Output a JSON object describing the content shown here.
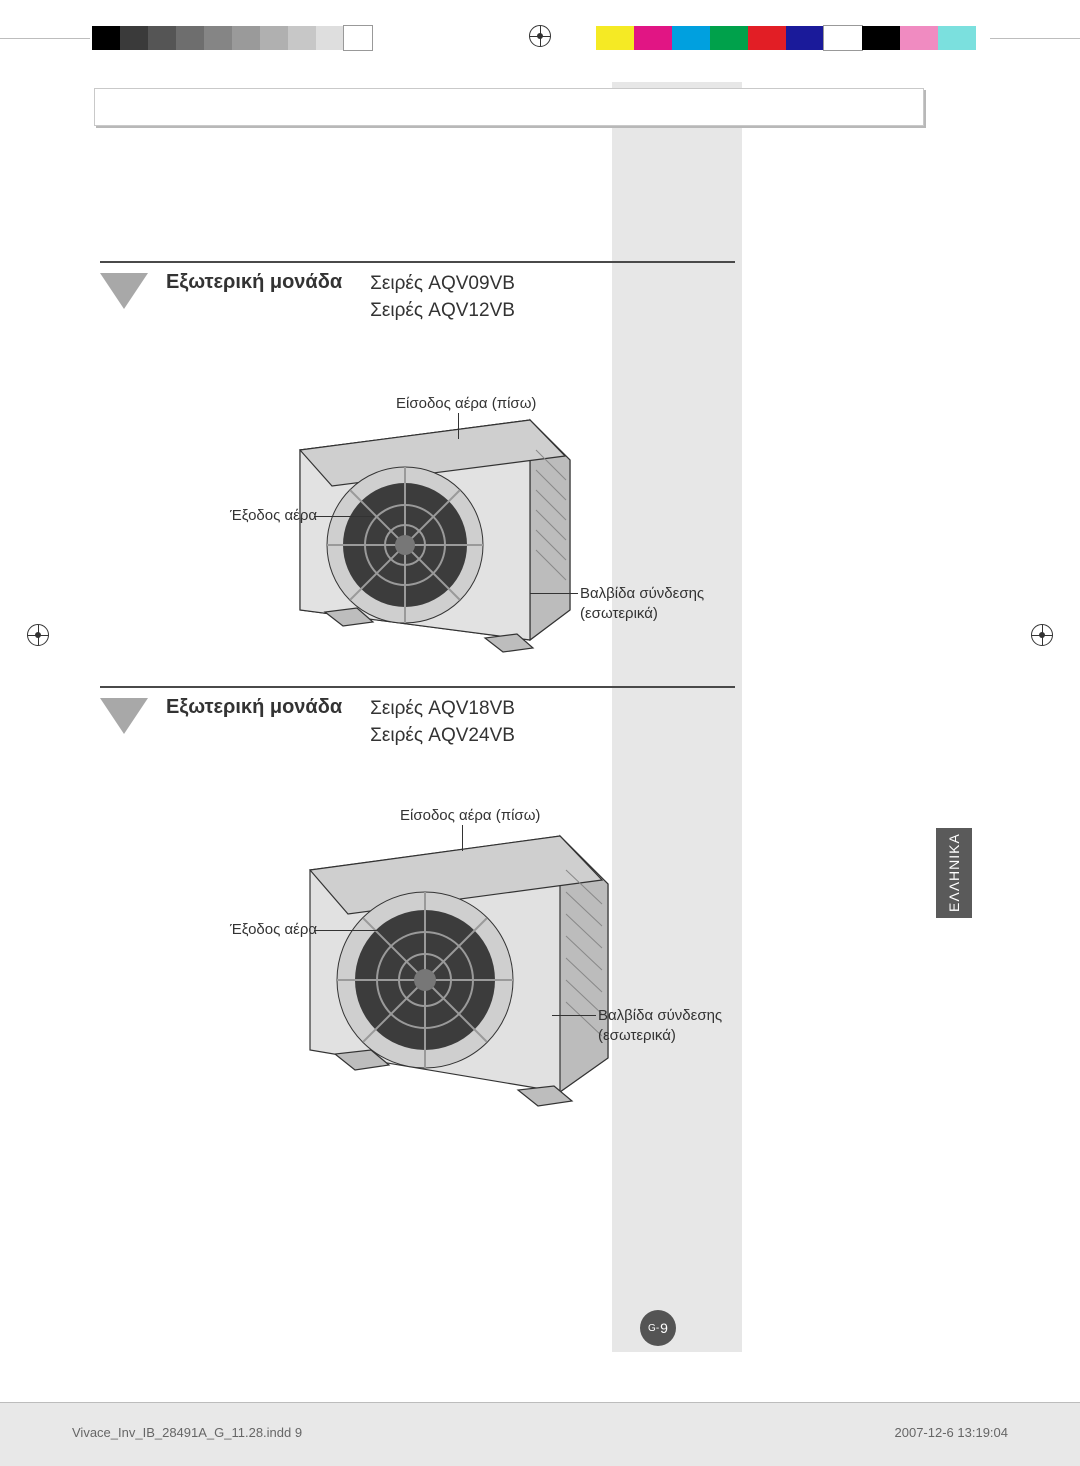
{
  "colorbar_left": [
    "#000000",
    "#3a3a3a",
    "#555555",
    "#6e6e6e",
    "#858585",
    "#9a9a9a",
    "#b0b0b0",
    "#c7c7c7",
    "#dedede",
    "#ffffff"
  ],
  "colorbar_right": [
    "#f5ea24",
    "#e11584",
    "#00a0df",
    "#00a14b",
    "#e21e25",
    "#1a1a9a",
    "#ffffff",
    "#000000",
    "#f08bc1",
    "#7be0de"
  ],
  "section1": {
    "title": "Εξωτερική μονάδα",
    "series1": "Σειρές AQV09VB",
    "series2": "Σειρές AQV12VB",
    "callouts": {
      "air_in": "Είσοδος αέρα (πίσω)",
      "air_out": "Έξοδος αέρα",
      "valve1": "Βαλβίδα σύνδεσης",
      "valve2": "(εσωτερικά)"
    }
  },
  "section2": {
    "title": "Εξωτερική μονάδα",
    "series1": "Σειρές AQV18VB",
    "series2": "Σειρές AQV24VB",
    "callouts": {
      "air_in": "Είσοδος αέρα (πίσω)",
      "air_out": "Έξοδος αέρα",
      "valve1": "Βαλβίδα σύνδεσης",
      "valve2": "(εσωτερικά)"
    }
  },
  "lang_tab": "ΕΛΛΗΝΙΚΑ",
  "page_number_prefix": "G-",
  "page_number": "9",
  "footer": {
    "file": "Vivace_Inv_IB_28491A_G_11.28.indd   9",
    "date": "2007-12-6   13:19:04"
  },
  "unit_colors": {
    "body": "#d9d9d9",
    "body_shadow": "#b7b7b7",
    "grille": "#888888",
    "fan_dark": "#3c3c3c",
    "outline": "#333333"
  }
}
